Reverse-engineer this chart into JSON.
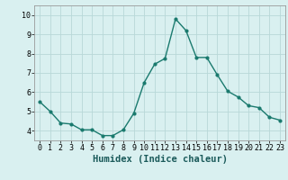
{
  "x": [
    0,
    1,
    2,
    3,
    4,
    5,
    6,
    7,
    8,
    9,
    10,
    11,
    12,
    13,
    14,
    15,
    16,
    17,
    18,
    19,
    20,
    21,
    22,
    23
  ],
  "y": [
    5.5,
    5.0,
    4.4,
    4.35,
    4.05,
    4.05,
    3.75,
    3.75,
    4.05,
    4.9,
    6.5,
    7.45,
    7.75,
    9.8,
    9.2,
    7.8,
    7.8,
    6.9,
    6.05,
    5.75,
    5.3,
    5.2,
    4.7,
    4.55
  ],
  "line_color": "#1a7a6e",
  "marker": "o",
  "marker_size": 2.0,
  "line_width": 1.0,
  "bg_color": "#d9f0f0",
  "grid_color": "#b8d8d8",
  "xlabel": "Humidex (Indice chaleur)",
  "ylim": [
    3.5,
    10.5
  ],
  "xlim": [
    -0.5,
    23.5
  ],
  "yticks": [
    4,
    5,
    6,
    7,
    8,
    9,
    10
  ],
  "xticks": [
    0,
    1,
    2,
    3,
    4,
    5,
    6,
    7,
    8,
    9,
    10,
    11,
    12,
    13,
    14,
    15,
    16,
    17,
    18,
    19,
    20,
    21,
    22,
    23
  ],
  "tick_label_fontsize": 6.0,
  "xlabel_fontsize": 7.5,
  "xlabel_fontweight": "bold"
}
